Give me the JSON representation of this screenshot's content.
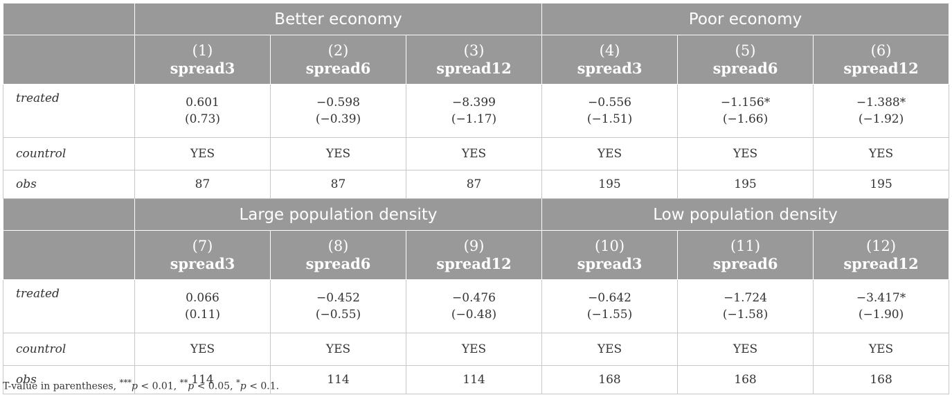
{
  "panels": [
    {
      "groups": [
        "Better economy",
        "Poor economy"
      ],
      "columns": [
        {
          "num": "(1)",
          "name": "spread3"
        },
        {
          "num": "(2)",
          "name": "spread6"
        },
        {
          "num": "(3)",
          "name": "spread12"
        },
        {
          "num": "(4)",
          "name": "spread3"
        },
        {
          "num": "(5)",
          "name": "spread6"
        },
        {
          "num": "(6)",
          "name": "spread12"
        }
      ],
      "rows": {
        "treated": {
          "label": "treated",
          "coef": [
            "0.601",
            "−0.598",
            "−8.399",
            "−0.556",
            "−1.156*",
            "−1.388*"
          ],
          "tval": [
            "(0.73)",
            "(−0.39)",
            "(−1.17)",
            "(−1.51)",
            "(−1.66)",
            "(−1.92)"
          ]
        },
        "control": {
          "label": "countrol",
          "values": [
            "YES",
            "YES",
            "YES",
            "YES",
            "YES",
            "YES"
          ]
        },
        "obs": {
          "label": "obs",
          "values": [
            "87",
            "87",
            "87",
            "195",
            "195",
            "195"
          ]
        }
      }
    },
    {
      "groups": [
        "Large population density",
        "Low population density"
      ],
      "columns": [
        {
          "num": "(7)",
          "name": "spread3"
        },
        {
          "num": "(8)",
          "name": "spread6"
        },
        {
          "num": "(9)",
          "name": "spread12"
        },
        {
          "num": "(10)",
          "name": "spread3"
        },
        {
          "num": "(11)",
          "name": "spread6"
        },
        {
          "num": "(12)",
          "name": "spread12"
        }
      ],
      "rows": {
        "treated": {
          "label": "treated",
          "coef": [
            "0.066",
            "−0.452",
            "−0.476",
            "−0.642",
            "−1.724",
            "−3.417*"
          ],
          "tval": [
            "(0.11)",
            "(−0.55)",
            "(−0.48)",
            "(−1.55)",
            "(−1.58)",
            "(−1.90)"
          ]
        },
        "control": {
          "label": "countrol",
          "values": [
            "YES",
            "YES",
            "YES",
            "YES",
            "YES",
            "YES"
          ]
        },
        "obs": {
          "label": "obs",
          "values": [
            "114",
            "114",
            "114",
            "168",
            "168",
            "168"
          ]
        }
      }
    }
  ],
  "footnote": {
    "lead": "T-value in parentheses, ",
    "s1": "***",
    "p": "p",
    "t1": " < 0.01, ",
    "s2": "**",
    "t2": " < 0.05, ",
    "s3": "*",
    "t3": " < 0.1."
  }
}
